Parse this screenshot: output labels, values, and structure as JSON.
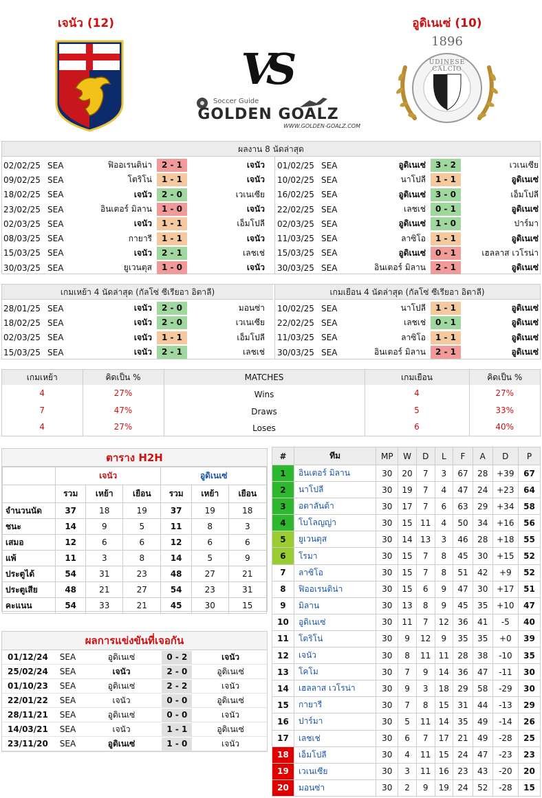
{
  "header": {
    "home_title": "เจนัว (12)",
    "away_title": "อูดิเนเซ่ (10)",
    "vs": "VS",
    "brand_small": "Soccer Guide",
    "brand": "GOLDEN GOALZ",
    "brand_url": "WWW.GOLDEN-GOALZ.COM",
    "away_crest_year": "1896",
    "away_crest_text": "UDINESE CALCIO"
  },
  "recent": {
    "title": "ผลงาน 8 นัดล่าสุด",
    "home": [
      {
        "date": "02/02/25",
        "lg": "SEA",
        "a": "ฟิออเรนติน่า",
        "s": "2 - 1",
        "b": "เจนัว",
        "r": "l",
        "bold": "b"
      },
      {
        "date": "09/02/25",
        "lg": "SEA",
        "a": "โตริโน่",
        "s": "1 - 1",
        "b": "เจนัว",
        "r": "d",
        "bold": "b"
      },
      {
        "date": "18/02/25",
        "lg": "SEA",
        "a": "เจนัว",
        "s": "2 - 0",
        "b": "เวเนเซีย",
        "r": "w",
        "bold": "a"
      },
      {
        "date": "23/02/25",
        "lg": "SEA",
        "a": "อินเตอร์ มิลาน",
        "s": "1 - 0",
        "b": "เจนัว",
        "r": "l",
        "bold": "b"
      },
      {
        "date": "02/03/25",
        "lg": "SEA",
        "a": "เจนัว",
        "s": "1 - 1",
        "b": "เอ็มโปลี",
        "r": "d",
        "bold": "a"
      },
      {
        "date": "08/03/25",
        "lg": "SEA",
        "a": "กายารี",
        "s": "1 - 1",
        "b": "เจนัว",
        "r": "d",
        "bold": "b"
      },
      {
        "date": "15/03/25",
        "lg": "SEA",
        "a": "เจนัว",
        "s": "2 - 1",
        "b": "เลชเช่",
        "r": "w",
        "bold": "a"
      },
      {
        "date": "30/03/25",
        "lg": "SEA",
        "a": "ยูเวนตุส",
        "s": "1 - 0",
        "b": "เจนัว",
        "r": "l",
        "bold": "b"
      }
    ],
    "away": [
      {
        "date": "01/02/25",
        "lg": "SEA",
        "a": "อูดิเนเซ่",
        "s": "3 - 2",
        "b": "เวเนเซีย",
        "r": "w",
        "bold": "a"
      },
      {
        "date": "10/02/25",
        "lg": "SEA",
        "a": "นาโปลี",
        "s": "1 - 1",
        "b": "อูดิเนเซ่",
        "r": "d",
        "bold": "b"
      },
      {
        "date": "16/02/25",
        "lg": "SEA",
        "a": "อูดิเนเซ่",
        "s": "3 - 0",
        "b": "เอ็มโปลี",
        "r": "w",
        "bold": "a"
      },
      {
        "date": "22/02/25",
        "lg": "SEA",
        "a": "เลชเช่",
        "s": "0 - 1",
        "b": "อูดิเนเซ่",
        "r": "w",
        "bold": "b"
      },
      {
        "date": "02/03/25",
        "lg": "SEA",
        "a": "อูดิเนเซ่",
        "s": "1 - 0",
        "b": "ปาร์มา",
        "r": "w",
        "bold": "a"
      },
      {
        "date": "11/03/25",
        "lg": "SEA",
        "a": "ลาซิโอ",
        "s": "1 - 1",
        "b": "อูดิเนเซ่",
        "r": "d",
        "bold": "b"
      },
      {
        "date": "15/03/25",
        "lg": "SEA",
        "a": "อูดิเนเซ่",
        "s": "0 - 1",
        "b": "เฮลลาส เวโรน่า",
        "r": "l",
        "bold": "a"
      },
      {
        "date": "30/03/25",
        "lg": "SEA",
        "a": "อินเตอร์ มิลาน",
        "s": "2 - 1",
        "b": "อูดิเนเซ่",
        "r": "l",
        "bold": "b"
      }
    ]
  },
  "venue": {
    "home_title": "เกมเหย้า 4 นัดล่าสุด (กัลโซ่ ซีเรียอา อิตาลี)",
    "away_title": "เกมเยือน 4 นัดล่าสุด (กัลโซ่ ซีเรียอา อิตาลี)",
    "home": [
      {
        "date": "28/01/25",
        "lg": "SEA",
        "a": "เจนัว",
        "s": "2 - 0",
        "b": "มอนซ่า",
        "r": "w",
        "bold": "a"
      },
      {
        "date": "18/02/25",
        "lg": "SEA",
        "a": "เจนัว",
        "s": "2 - 0",
        "b": "เวเนเซีย",
        "r": "w",
        "bold": "a"
      },
      {
        "date": "02/03/25",
        "lg": "SEA",
        "a": "เจนัว",
        "s": "1 - 1",
        "b": "เอ็มโปลี",
        "r": "d",
        "bold": "a"
      },
      {
        "date": "15/03/25",
        "lg": "SEA",
        "a": "เจนัว",
        "s": "2 - 1",
        "b": "เลชเช่",
        "r": "w",
        "bold": "a"
      }
    ],
    "away": [
      {
        "date": "10/02/25",
        "lg": "SEA",
        "a": "นาโปลี",
        "s": "1 - 1",
        "b": "อูดิเนเซ่",
        "r": "d",
        "bold": "b"
      },
      {
        "date": "22/02/25",
        "lg": "SEA",
        "a": "เลชเช่",
        "s": "0 - 1",
        "b": "อูดิเนเซ่",
        "r": "w",
        "bold": "b"
      },
      {
        "date": "11/03/25",
        "lg": "SEA",
        "a": "ลาซิโอ",
        "s": "1 - 1",
        "b": "อูดิเนเซ่",
        "r": "d",
        "bold": "b"
      },
      {
        "date": "30/03/25",
        "lg": "SEA",
        "a": "อินเตอร์ มิลาน",
        "s": "2 - 1",
        "b": "อูดิเนเซ่",
        "r": "l",
        "bold": "b"
      }
    ]
  },
  "summary": {
    "h1": "เกมเหย้า",
    "h2": "คิดเป็น %",
    "h3": "MATCHES",
    "h4": "เกมเยือน",
    "h5": "คิดเป็น %",
    "rows": [
      {
        "hn": "4",
        "hp": "27%",
        "label": "Wins",
        "an": "4",
        "ap": "27%"
      },
      {
        "hn": "7",
        "hp": "47%",
        "label": "Draws",
        "an": "5",
        "ap": "33%"
      },
      {
        "hn": "4",
        "hp": "27%",
        "label": "Loses",
        "an": "6",
        "ap": "40%"
      }
    ]
  },
  "h2h": {
    "title": "ตาราง H2H",
    "home": "เจนัว",
    "away": "อูดิเนเซ่",
    "cols": [
      "รวม",
      "เหย้า",
      "เยือน",
      "รวม",
      "เหย้า",
      "เยือน"
    ],
    "rows": [
      {
        "label": "จำนวนนัด",
        "v": [
          "37",
          "18",
          "19",
          "37",
          "19",
          "18"
        ]
      },
      {
        "label": "ชนะ",
        "v": [
          "14",
          "9",
          "5",
          "11",
          "8",
          "3"
        ]
      },
      {
        "label": "เสมอ",
        "v": [
          "12",
          "6",
          "6",
          "12",
          "6",
          "6"
        ]
      },
      {
        "label": "แพ้",
        "v": [
          "11",
          "3",
          "8",
          "14",
          "5",
          "9"
        ]
      },
      {
        "label": "ประตูได้",
        "v": [
          "54",
          "31",
          "23",
          "48",
          "27",
          "21"
        ]
      },
      {
        "label": "ประตูเสีย",
        "v": [
          "48",
          "21",
          "27",
          "54",
          "23",
          "31"
        ]
      },
      {
        "label": "คะแนน",
        "v": [
          "54",
          "33",
          "21",
          "45",
          "30",
          "15"
        ]
      }
    ]
  },
  "meetings": {
    "title": "ผลการแข่งขันที่เจอกัน",
    "rows": [
      {
        "date": "01/12/24",
        "lg": "SEA",
        "a": "อูดิเนเซ่",
        "s": "0 - 2",
        "b": "เจนัว",
        "bold": "b"
      },
      {
        "date": "25/02/24",
        "lg": "SEA",
        "a": "เจนัว",
        "s": "2 - 0",
        "b": "อูดิเนเซ่",
        "bold": "a"
      },
      {
        "date": "01/10/23",
        "lg": "SEA",
        "a": "อูดิเนเซ่",
        "s": "2 - 2",
        "b": "เจนัว",
        "bold": ""
      },
      {
        "date": "22/01/22",
        "lg": "SEA",
        "a": "เจนัว",
        "s": "0 - 0",
        "b": "อูดิเนเซ่",
        "bold": ""
      },
      {
        "date": "28/11/21",
        "lg": "SEA",
        "a": "อูดิเนเซ่",
        "s": "0 - 0",
        "b": "เจนัว",
        "bold": ""
      },
      {
        "date": "14/03/21",
        "lg": "SEA",
        "a": "เจนัว",
        "s": "1 - 1",
        "b": "อูดิเนเซ่",
        "bold": ""
      },
      {
        "date": "23/11/20",
        "lg": "SEA",
        "a": "อูดิเนเซ่",
        "s": "1 - 0",
        "b": "เจนัว",
        "bold": "a"
      }
    ]
  },
  "standings": {
    "cols": [
      "#",
      "ทีม",
      "MP",
      "W",
      "D",
      "L",
      "F",
      "A",
      "D",
      "P"
    ],
    "rows": [
      {
        "pos": "1",
        "team": "อินเตอร์ มิลาน",
        "mp": "30",
        "w": "20",
        "d": "7",
        "l": "3",
        "f": "67",
        "a": "28",
        "gd": "+39",
        "p": "67",
        "c": "#2db82d"
      },
      {
        "pos": "2",
        "team": "นาโปลี",
        "mp": "30",
        "w": "19",
        "d": "7",
        "l": "4",
        "f": "47",
        "a": "24",
        "gd": "+23",
        "p": "64",
        "c": "#2db82d"
      },
      {
        "pos": "3",
        "team": "อตาลันต้า",
        "mp": "30",
        "w": "17",
        "d": "7",
        "l": "6",
        "f": "63",
        "a": "29",
        "gd": "+34",
        "p": "58",
        "c": "#2db82d"
      },
      {
        "pos": "4",
        "team": "โบโลญญ่า",
        "mp": "30",
        "w": "15",
        "d": "11",
        "l": "4",
        "f": "50",
        "a": "34",
        "gd": "+16",
        "p": "56",
        "c": "#2db82d"
      },
      {
        "pos": "5",
        "team": "ยูเวนตุส",
        "mp": "30",
        "w": "14",
        "d": "13",
        "l": "3",
        "f": "46",
        "a": "28",
        "gd": "+18",
        "p": "55",
        "c": "#9acd32"
      },
      {
        "pos": "6",
        "team": "โรมา",
        "mp": "30",
        "w": "15",
        "d": "7",
        "l": "8",
        "f": "45",
        "a": "30",
        "gd": "+15",
        "p": "52",
        "c": "#9acd32"
      },
      {
        "pos": "7",
        "team": "ลาซิโอ",
        "mp": "30",
        "w": "15",
        "d": "7",
        "l": "8",
        "f": "51",
        "a": "42",
        "gd": "+9",
        "p": "52",
        "c": ""
      },
      {
        "pos": "8",
        "team": "ฟิออเรนติน่า",
        "mp": "30",
        "w": "15",
        "d": "6",
        "l": "9",
        "f": "47",
        "a": "30",
        "gd": "+17",
        "p": "51",
        "c": ""
      },
      {
        "pos": "9",
        "team": "มิลาน",
        "mp": "30",
        "w": "13",
        "d": "8",
        "l": "9",
        "f": "45",
        "a": "35",
        "gd": "+10",
        "p": "47",
        "c": ""
      },
      {
        "pos": "10",
        "team": "อูดิเนเซ่",
        "mp": "30",
        "w": "11",
        "d": "7",
        "l": "12",
        "f": "36",
        "a": "41",
        "gd": "-5",
        "p": "40",
        "c": ""
      },
      {
        "pos": "11",
        "team": "โตริโน่",
        "mp": "30",
        "w": "9",
        "d": "12",
        "l": "9",
        "f": "35",
        "a": "35",
        "gd": "+0",
        "p": "39",
        "c": ""
      },
      {
        "pos": "12",
        "team": "เจนัว",
        "mp": "30",
        "w": "8",
        "d": "11",
        "l": "11",
        "f": "28",
        "a": "38",
        "gd": "-10",
        "p": "35",
        "c": ""
      },
      {
        "pos": "13",
        "team": "โคโม",
        "mp": "30",
        "w": "7",
        "d": "9",
        "l": "14",
        "f": "36",
        "a": "47",
        "gd": "-11",
        "p": "30",
        "c": ""
      },
      {
        "pos": "14",
        "team": "เฮลลาส เวโรน่า",
        "mp": "30",
        "w": "9",
        "d": "3",
        "l": "18",
        "f": "29",
        "a": "58",
        "gd": "-29",
        "p": "30",
        "c": ""
      },
      {
        "pos": "15",
        "team": "กายารี",
        "mp": "30",
        "w": "7",
        "d": "8",
        "l": "15",
        "f": "31",
        "a": "44",
        "gd": "-13",
        "p": "29",
        "c": ""
      },
      {
        "pos": "16",
        "team": "ปาร์มา",
        "mp": "30",
        "w": "5",
        "d": "11",
        "l": "14",
        "f": "35",
        "a": "49",
        "gd": "-14",
        "p": "26",
        "c": ""
      },
      {
        "pos": "17",
        "team": "เลชเช่",
        "mp": "30",
        "w": "6",
        "d": "7",
        "l": "17",
        "f": "21",
        "a": "49",
        "gd": "-28",
        "p": "25",
        "c": ""
      },
      {
        "pos": "18",
        "team": "เอ็มโปลี",
        "mp": "30",
        "w": "4",
        "d": "11",
        "l": "15",
        "f": "24",
        "a": "47",
        "gd": "-23",
        "p": "23",
        "c": "#e00000"
      },
      {
        "pos": "19",
        "team": "เวเนเซีย",
        "mp": "30",
        "w": "3",
        "d": "11",
        "l": "16",
        "f": "23",
        "a": "43",
        "gd": "-20",
        "p": "20",
        "c": "#e00000"
      },
      {
        "pos": "20",
        "team": "มอนซ่า",
        "mp": "30",
        "w": "2",
        "d": "9",
        "l": "19",
        "f": "24",
        "a": "52",
        "gd": "-28",
        "p": "15",
        "c": "#e00000"
      }
    ]
  }
}
